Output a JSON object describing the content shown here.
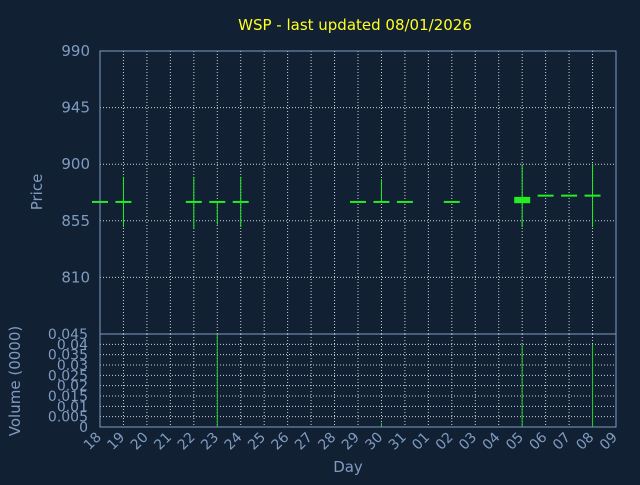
{
  "chart_data": {
    "title": "WSP - last updated 08/01/2026",
    "xlabel": "Day",
    "x_tick_labels": [
      "18",
      "19",
      "20",
      "21",
      "22",
      "23",
      "24",
      "25",
      "26",
      "27",
      "28",
      "29",
      "30",
      "31",
      "01",
      "02",
      "03",
      "04",
      "05",
      "06",
      "07",
      "08",
      "09"
    ],
    "price": {
      "type": "candlestick",
      "ylabel": "Price",
      "ylim": [
        765,
        990
      ],
      "y_ticks": [
        "810",
        "855",
        "900",
        "945",
        "990"
      ],
      "y_tick_values": [
        810,
        855,
        900,
        945,
        990
      ],
      "grid": true,
      "candles": [
        {
          "day": 0,
          "open": 870,
          "high": 870,
          "low": 870,
          "close": 870
        },
        {
          "day": 1,
          "open": 870,
          "high": 890,
          "low": 850,
          "close": 870
        },
        {
          "day": 4,
          "open": 870,
          "high": 890,
          "low": 849,
          "close": 870
        },
        {
          "day": 5,
          "open": 870,
          "high": 870,
          "low": 852,
          "close": 870
        },
        {
          "day": 6,
          "open": 870,
          "high": 890,
          "low": 850,
          "close": 870
        },
        {
          "day": 11,
          "open": 870,
          "high": 870,
          "low": 870,
          "close": 870
        },
        {
          "day": 12,
          "open": 870,
          "high": 888,
          "low": 870,
          "close": 870
        },
        {
          "day": 13,
          "open": 870,
          "high": 870,
          "low": 870,
          "close": 870
        },
        {
          "day": 15,
          "open": 870,
          "high": 870,
          "low": 870,
          "close": 870
        },
        {
          "day": 18,
          "open": 869,
          "high": 900,
          "low": 850,
          "close": 874
        },
        {
          "day": 19,
          "open": 875,
          "high": 875,
          "low": 875,
          "close": 875
        },
        {
          "day": 20,
          "open": 875,
          "high": 875,
          "low": 875,
          "close": 875
        },
        {
          "day": 21,
          "open": 875,
          "high": 900,
          "low": 850,
          "close": 875
        }
      ]
    },
    "volume": {
      "type": "bar",
      "ylabel": "Volume (0000)",
      "ylim": [
        0,
        0.045
      ],
      "y_ticks": [
        "0",
        "0.005",
        "0.01",
        "0.015",
        "0.02",
        "0.025",
        "0.03",
        "0.035",
        "0.04",
        "0.045"
      ],
      "y_tick_values": [
        0,
        0.005,
        0.01,
        0.015,
        0.02,
        0.025,
        0.03,
        0.035,
        0.04,
        0.045
      ],
      "bars": [
        {
          "day": 5,
          "value": 0.045
        },
        {
          "day": 12,
          "value": 0.002
        },
        {
          "day": 18,
          "value": 0.04
        },
        {
          "day": 21,
          "value": 0.04
        }
      ]
    },
    "colors": {
      "background": "#112033",
      "candle": "#22ee22",
      "volume": "#22cc22",
      "title": "#ffff22",
      "axis_text": "#7f9cc0"
    }
  }
}
